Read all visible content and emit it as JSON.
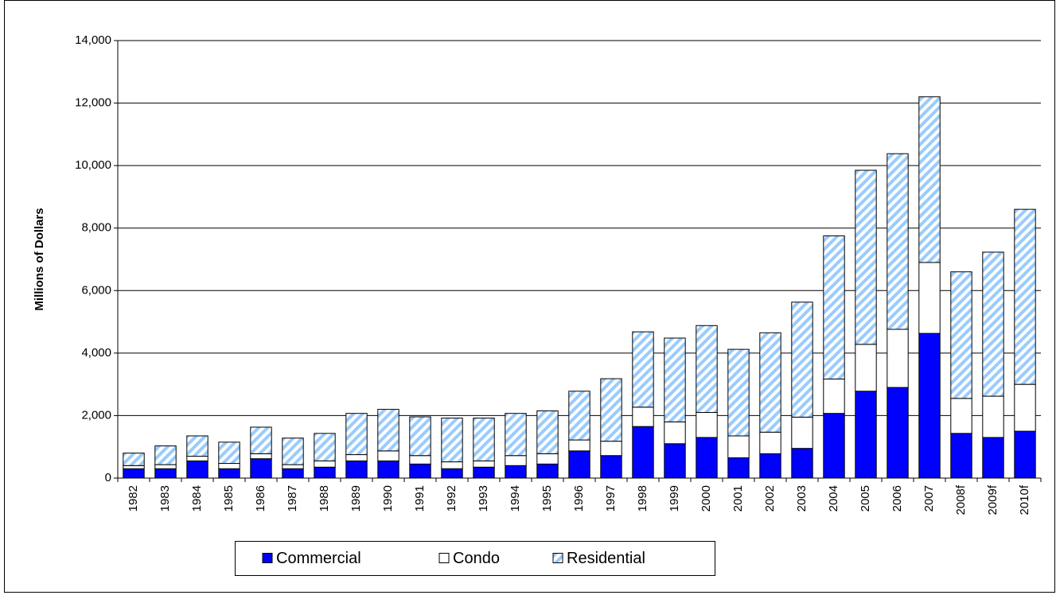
{
  "chart_data": {
    "type": "stacked_bar",
    "y_label": "Millions of Dollars",
    "categories": [
      "1982",
      "1983",
      "1984",
      "1985",
      "1986",
      "1987",
      "1988",
      "1989",
      "1990",
      "1991",
      "1992",
      "1993",
      "1994",
      "1995",
      "1996",
      "1997",
      "1998",
      "1999",
      "2000",
      "2001",
      "2002",
      "2003",
      "2004",
      "2005",
      "2006",
      "2007",
      "2008f",
      "2009f",
      "2010f"
    ],
    "series": [
      {
        "name": "Commercial",
        "color": "#0000ff",
        "values": [
          300,
          300,
          550,
          300,
          620,
          300,
          350,
          550,
          550,
          450,
          300,
          350,
          400,
          450,
          870,
          720,
          1650,
          1100,
          1300,
          650,
          780,
          950,
          2070,
          2780,
          2900,
          4630,
          1430,
          1300,
          1500
        ]
      },
      {
        "name": "Condo",
        "color": "#ffffff",
        "values": [
          100,
          130,
          150,
          170,
          160,
          130,
          200,
          200,
          320,
          270,
          220,
          200,
          320,
          330,
          350,
          460,
          620,
          700,
          800,
          700,
          690,
          1000,
          1100,
          1500,
          1860,
          2270,
          1120,
          1320,
          1500
        ]
      },
      {
        "name": "Residential",
        "color": "#99ccff",
        "hatch": true,
        "values": [
          400,
          600,
          650,
          680,
          850,
          850,
          880,
          1320,
          1330,
          1240,
          1400,
          1370,
          1350,
          1370,
          1560,
          2000,
          2410,
          2680,
          2780,
          2770,
          3180,
          3680,
          4580,
          5570,
          5620,
          5300,
          4050,
          4610,
          5600
        ]
      }
    ],
    "ylim": [
      0,
      14000
    ],
    "yticks": [
      0,
      {
        "value": 2000,
        "label": "2,000"
      },
      {
        "value": 4000,
        "label": "4,000"
      },
      {
        "value": 6000,
        "label": "6,000"
      },
      {
        "value": 8000,
        "label": "8,000"
      },
      {
        "value": 10000,
        "label": "10,000"
      },
      {
        "value": 12000,
        "label": "12,000"
      },
      {
        "value": 14000,
        "label": "14,000"
      }
    ],
    "grid": true,
    "legend": "bottom"
  }
}
